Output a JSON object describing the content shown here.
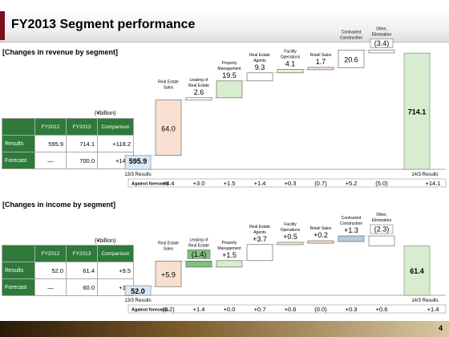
{
  "title": "FY2013 Segment performance",
  "colors": {
    "accent": "#7a0f1d",
    "header_green": "#2f7a3a"
  },
  "revenue": {
    "section_title": "[Changes in revenue by segment]",
    "unit": "(¥billion)",
    "table": {
      "headers": [
        "FY2012",
        "FY2013",
        "Comparison"
      ],
      "rows": [
        {
          "label": "Results",
          "values": [
            "595.9",
            "714.1",
            "+118.2"
          ]
        },
        {
          "label": "Forecast",
          "values": [
            "—",
            "700.0",
            "+14.1"
          ]
        }
      ]
    },
    "chart": {
      "start_label": "13/3 Results",
      "end_label": "14/3 Results",
      "start_value": 595.9,
      "end_value": 714.1,
      "start_text": "595.9",
      "end_text": "714.1",
      "forecast_label": "Against forecasts",
      "forecasts": [
        "+8.4",
        "+3.0",
        "+1.5",
        "+1.4",
        "+0.3",
        "(0.7)",
        "+5.2",
        "(5.0)",
        "+14.1"
      ],
      "steps": [
        {
          "name": "Real Estate Sales",
          "value": 64.0,
          "text": "64.0",
          "color": "#f8e0d0"
        },
        {
          "name": "Leasing of Real Estate",
          "value": 2.6,
          "text": "2.6",
          "color": "#ffffff"
        },
        {
          "name": "Property Management",
          "value": 19.5,
          "text": "19.5",
          "color": "#d8ecd0"
        },
        {
          "name": "Real Estate Agents",
          "value": 9.3,
          "text": "9.3",
          "color": "#ffffff"
        },
        {
          "name": "Facility Operations",
          "value": 4.1,
          "text": "4.1",
          "color": "#f0ecd0"
        },
        {
          "name": "Retail Sales",
          "value": 1.7,
          "text": "1.7",
          "color": "#f8e0d0"
        },
        {
          "name": "Contracted Construction",
          "value": 20.6,
          "text": "20.6",
          "color": "#ffffff"
        },
        {
          "name": "Other, Elimination",
          "value": -3.4,
          "text": "(3.4)",
          "color": "#ffffff"
        }
      ]
    }
  },
  "income": {
    "section_title": "[Changes in income by segment]",
    "unit": "(¥billion)",
    "table": {
      "headers": [
        "FY2012",
        "FY2013",
        "Comparison"
      ],
      "rows": [
        {
          "label": "Results",
          "values": [
            "52.0",
            "61.4",
            "+9.5"
          ]
        },
        {
          "label": "Forecast",
          "values": [
            "—",
            "60.0",
            "+1.4"
          ]
        }
      ]
    },
    "chart": {
      "start_label": "13/3 Results",
      "end_label": "14/3 Results",
      "start_value": 52.0,
      "end_value": 61.4,
      "start_text": "52.0",
      "end_text": "61.4",
      "forecast_label": "Against forecasts",
      "forecasts": [
        "(2.2)",
        "+1.4",
        "+0.0",
        "+0.7",
        "+0.6",
        "(0.0)",
        "+0.3",
        "+0.6",
        "+1.4"
      ],
      "steps": [
        {
          "name": "Real Estate Sales",
          "value": 5.9,
          "text": "+5.9",
          "color": "#f8e0d0"
        },
        {
          "name": "Leasing of Real Estate",
          "value": -1.4,
          "text": "(1.4)",
          "color": "#7fc07f"
        },
        {
          "name": "Property Management",
          "value": 1.5,
          "text": "+1.5",
          "color": "#d8ecd0"
        },
        {
          "name": "Real Estate Agents",
          "value": 3.7,
          "text": "+3.7",
          "color": "#ffffff"
        },
        {
          "name": "Facility Operations",
          "value": 0.5,
          "text": "+0.5",
          "color": "#f0ecd0"
        },
        {
          "name": "Retail Sales",
          "value": 0.2,
          "text": "+0.2",
          "color": "#f8e0d0"
        },
        {
          "name": "Contracted Construction",
          "value": 1.3,
          "text": "+1.3",
          "color": "#b8cce0"
        },
        {
          "name": "Other, Elimination",
          "value": -2.3,
          "text": "(2.3)",
          "color": "#ffffff"
        }
      ]
    }
  },
  "page_number": "4"
}
